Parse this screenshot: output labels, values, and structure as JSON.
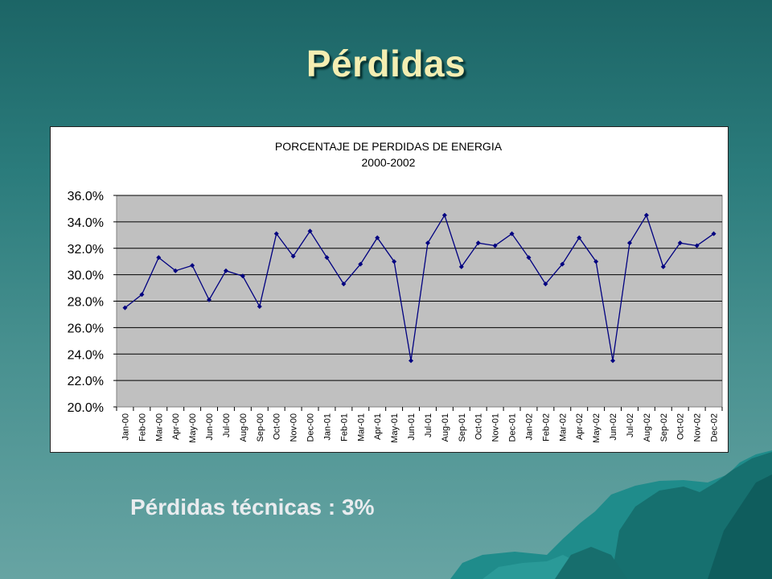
{
  "slide": {
    "title": "Pérdidas",
    "footer_note": "Pérdidas técnicas : 3%"
  },
  "colors": {
    "background_top": "#1c6566",
    "background_bottom": "#67a4a3",
    "title": "#f4eeb2",
    "plot_area": "#c0c0c0",
    "series_line": "#000080"
  },
  "chart_data": {
    "type": "line",
    "title": "PORCENTAJE DE PERDIDAS DE ENERGIA",
    "subtitle": "2000-2002",
    "xlabel": "",
    "ylabel": "",
    "ylim": [
      20.0,
      36.0
    ],
    "yticks": [
      "20.0%",
      "22.0%",
      "24.0%",
      "26.0%",
      "28.0%",
      "30.0%",
      "32.0%",
      "34.0%",
      "36.0%"
    ],
    "grid": true,
    "legend": "none",
    "categories": [
      "Jan-00",
      "Feb-00",
      "Mar-00",
      "Apr-00",
      "May-00",
      "Jun-00",
      "Jul-00",
      "Aug-00",
      "Sep-00",
      "Oct-00",
      "Nov-00",
      "Dec-00",
      "Jan-01",
      "Feb-01",
      "Mar-01",
      "Apr-01",
      "May-01",
      "Jun-01",
      "Jul-01",
      "Aug-01",
      "Sep-01",
      "Oct-01",
      "Nov-01",
      "Dec-01",
      "Jan-02",
      "Feb-02",
      "Mar-02",
      "Apr-02",
      "May-02",
      "Jun-02",
      "Jul-02",
      "Aug-02",
      "Sep-02",
      "Oct-02",
      "Nov-02",
      "Dec-02"
    ],
    "series": [
      {
        "values": [
          27.5,
          28.5,
          31.3,
          30.3,
          30.7,
          28.1,
          30.3,
          29.9,
          27.6,
          33.1,
          31.4,
          33.3,
          31.3,
          29.3,
          30.8,
          32.8,
          31.0,
          23.5,
          32.4,
          34.5,
          30.6,
          32.4,
          32.2,
          33.1,
          31.3,
          29.3,
          30.8,
          32.8,
          31.0,
          23.5,
          32.4,
          34.5,
          30.6,
          32.4,
          32.2,
          33.1
        ]
      }
    ]
  }
}
